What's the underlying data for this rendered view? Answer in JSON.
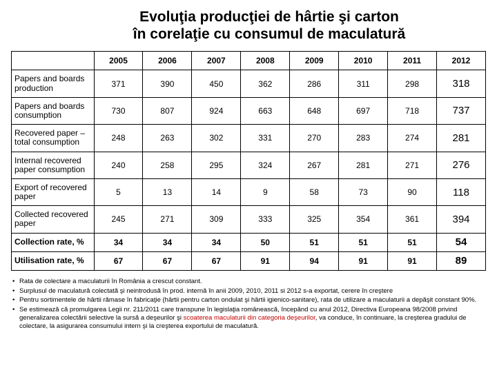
{
  "title_line1": "Evoluţia producţiei de hârtie şi carton",
  "title_line2": "în corelaţie cu consumul de maculatură",
  "years": [
    "2005",
    "2006",
    "2007",
    "2008",
    "2009",
    "2010",
    "2011",
    "2012"
  ],
  "rows": [
    {
      "label": "Papers and boards production",
      "bold": false,
      "cells": [
        "371",
        "390",
        "450",
        "362",
        "286",
        "311",
        "298",
        "318"
      ]
    },
    {
      "label": "Papers and boards consumption",
      "bold": false,
      "cells": [
        "730",
        "807",
        "924",
        "663",
        "648",
        "697",
        "718",
        "737"
      ]
    },
    {
      "label": "Recovered paper – total consumption",
      "bold": false,
      "cells": [
        "248",
        "263",
        "302",
        "331",
        "270",
        "283",
        "274",
        "281"
      ]
    },
    {
      "label": "Internal recovered paper consumption",
      "bold": false,
      "cells": [
        "240",
        "258",
        "295",
        "324",
        "267",
        "281",
        "271",
        "276"
      ]
    },
    {
      "label": "Export of recovered paper",
      "bold": false,
      "cells": [
        "5",
        "13",
        "14",
        "9",
        "58",
        "73",
        "90",
        "118"
      ]
    },
    {
      "label": "Collected recovered paper",
      "bold": false,
      "cells": [
        "245",
        "271",
        "309",
        "333",
        "325",
        "354",
        "361",
        "394"
      ]
    },
    {
      "label": "Collection rate, %",
      "bold": true,
      "cells": [
        "34",
        "34",
        "34",
        "50",
        "51",
        "51",
        "51",
        "54"
      ]
    },
    {
      "label": "Utilisation rate, %",
      "bold": true,
      "cells": [
        "67",
        "67",
        "67",
        "91",
        "94",
        "91",
        "91",
        "89"
      ]
    }
  ],
  "notes": [
    {
      "pre": "Rata de colectare a maculaturii în România a crescut constant."
    },
    {
      "pre": "Surplusul de maculatură colectată şi neintrodusă în prod. internă în anii 2009, 2010, 2011 si 2012 s-a exportat, cerere în creştere"
    },
    {
      "pre": "Pentru sortimentele de hârtii rămase în fabricaţie (hârtii pentru carton ondulat şi hârtii igienico-sanitare), rata de utilizare a maculaturii a depăşit constant 90%."
    },
    {
      "pre": "Se estimează că promulgarea Legii nr. 211/2011 care transpune în legislaţia românească, începând cu anul 2012,  Directiva Europeana 98/2008 privind generalizarea colectării selective la sursă a deşeurilor şi ",
      "red": "scoaterea maculaturii din categoria deşeurilor",
      "post": ", va conduce, în continuare, la creşterea gradului de colectare, la asigurarea consumului intern şi la creşterea exportului de maculatură."
    }
  ],
  "colors": {
    "text": "#000000",
    "border": "#000000",
    "background": "#ffffff",
    "highlight": "#c00000"
  }
}
